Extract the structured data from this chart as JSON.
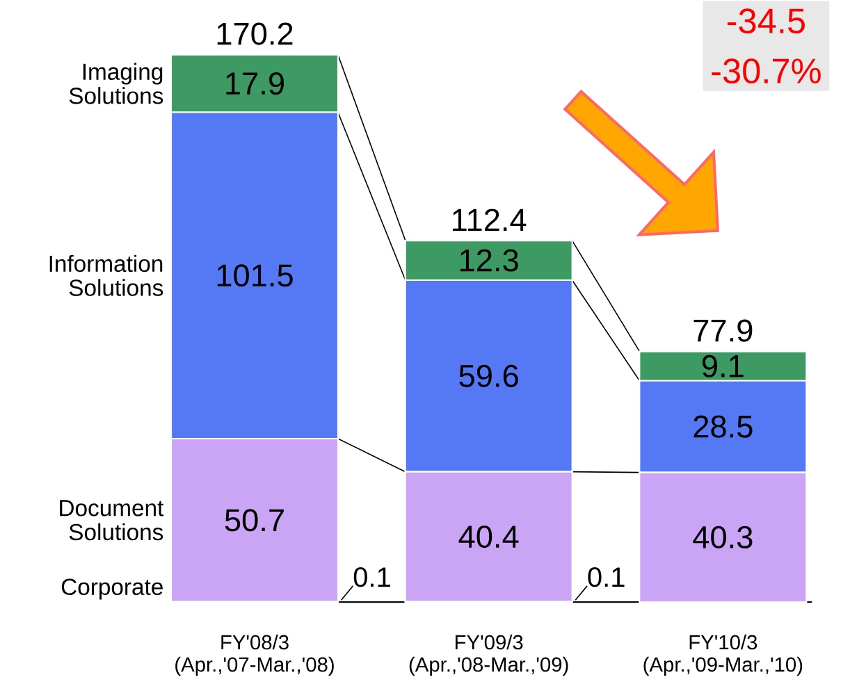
{
  "chart_data": {
    "type": "bar",
    "stacked": true,
    "categories": [
      "FY'08/3 (Apr.,'07-Mar.,'08)",
      "FY'09/3 (Apr.,'08-Mar.,'09)",
      "FY'10/3 (Apr.,'09-Mar.,'10)"
    ],
    "series": [
      {
        "name": "Corporate",
        "color": "#b08ae8",
        "values": [
          0.1,
          0.1,
          0
        ],
        "value_labels": [
          "0.1",
          "0.1",
          null
        ]
      },
      {
        "name": "Document Solutions",
        "color": "#caa4f5",
        "values": [
          50.7,
          40.4,
          40.3
        ]
      },
      {
        "name": "Information Solutions",
        "color": "#5579f5",
        "values": [
          101.5,
          59.6,
          28.5
        ]
      },
      {
        "name": "Imaging Solutions",
        "color": "#3c9a62",
        "values": [
          17.9,
          12.3,
          9.1
        ]
      }
    ],
    "data_labels": true,
    "totals": [
      "170.2",
      "112.4",
      "77.9"
    ],
    "tick_labels": "x",
    "annotations": [
      "-34.5",
      "-30.7%"
    ]
  }
}
